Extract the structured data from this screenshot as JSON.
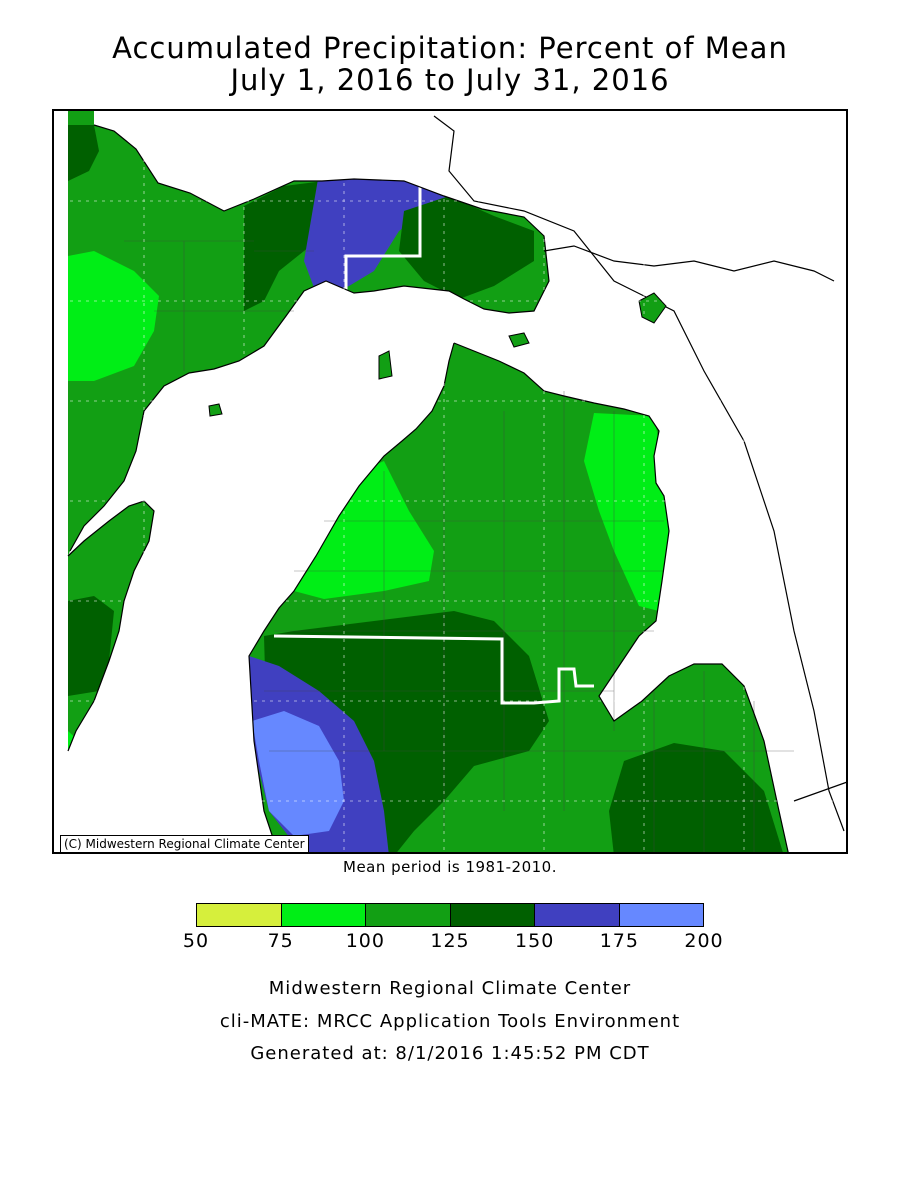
{
  "title": "Accumulated Precipitation: Percent of Mean",
  "subtitle": "July 1, 2016 to July 31, 2016",
  "copyright": "(C) Midwestern Regional Climate Center",
  "mean_period": "Mean period is 1981-2010.",
  "legend": {
    "colors": [
      "#d6ef3c",
      "#00ee16",
      "#129f14",
      "#006000",
      "#4040c0",
      "#6688ff"
    ],
    "ticks": [
      "50",
      "75",
      "100",
      "125",
      "150",
      "175",
      "200"
    ]
  },
  "footer": {
    "line1": "Midwestern Regional Climate Center",
    "line2": "cli-MATE: MRCC Application Tools Environment",
    "line3": "Generated at: 8/1/2016 1:45:52 PM CDT"
  },
  "map": {
    "region": "Michigan",
    "lake_color": "#ffffff",
    "border_color": "#ffffff"
  }
}
